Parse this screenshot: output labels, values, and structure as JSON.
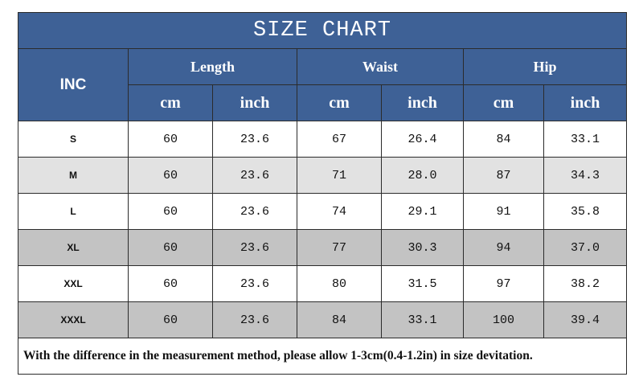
{
  "title": "SIZE CHART",
  "table": {
    "corner": "INC",
    "groups": [
      "Length",
      "Waist",
      "Hip"
    ],
    "units": [
      "cm",
      "inch",
      "cm",
      "inch",
      "cm",
      "inch"
    ],
    "rows": [
      [
        "S",
        "60",
        "23.6",
        "67",
        "26.4",
        "84",
        "33.1"
      ],
      [
        "M",
        "60",
        "23.6",
        "71",
        "28.0",
        "87",
        "34.3"
      ],
      [
        "L",
        "60",
        "23.6",
        "74",
        "29.1",
        "91",
        "35.8"
      ],
      [
        "XL",
        "60",
        "23.6",
        "77",
        "30.3",
        "94",
        "37.0"
      ],
      [
        "XXL",
        "60",
        "23.6",
        "80",
        "31.5",
        "97",
        "38.2"
      ],
      [
        "XXXL",
        "60",
        "23.6",
        "84",
        "33.1",
        "100",
        "39.4"
      ]
    ]
  },
  "note": "With the difference in the measurement method, please allow 1-3cm(0.4-1.2in) in size devitation."
}
